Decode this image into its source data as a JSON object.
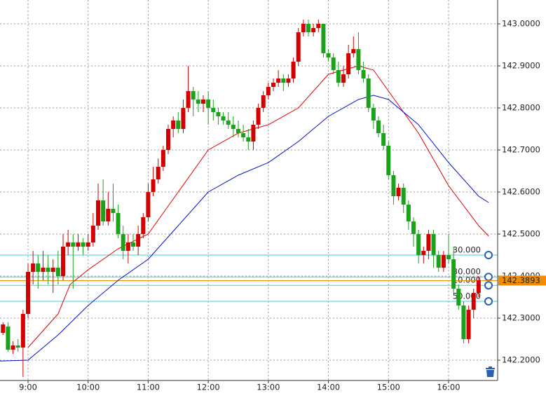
{
  "chart_data": {
    "type": "candlestick",
    "x": [
      515,
      520,
      525,
      530,
      535,
      540,
      545,
      550,
      555,
      560,
      565,
      570,
      575,
      580,
      585,
      590,
      595,
      600,
      605,
      610,
      615,
      620,
      625,
      630,
      635,
      640,
      645,
      650,
      655,
      660,
      665,
      670,
      675,
      680,
      685,
      690,
      695,
      700,
      705,
      710,
      715,
      720,
      725,
      730,
      735,
      740,
      745,
      750,
      755,
      760,
      765,
      770,
      775,
      780,
      785,
      790,
      795,
      800,
      805,
      810,
      815,
      820,
      825,
      830,
      835,
      840,
      845,
      850,
      855,
      860,
      865,
      870,
      875,
      880,
      885,
      890,
      895,
      900,
      905,
      910,
      915,
      920,
      925,
      930,
      935,
      940,
      945,
      950,
      955,
      960,
      965,
      970,
      975,
      980,
      985,
      990
    ],
    "open": [
      142.265,
      142.28,
      142.225,
      142.235,
      142.23,
      142.31,
      142.41,
      142.43,
      142.41,
      142.42,
      142.41,
      142.42,
      142.4,
      142.47,
      142.48,
      142.47,
      142.48,
      142.47,
      142.48,
      142.52,
      142.58,
      142.53,
      142.56,
      142.55,
      142.5,
      142.46,
      142.48,
      142.47,
      142.5,
      142.54,
      142.6,
      142.63,
      142.66,
      142.7,
      142.75,
      142.77,
      142.75,
      142.8,
      142.84,
      142.82,
      142.81,
      142.82,
      142.8,
      142.79,
      142.78,
      142.77,
      142.76,
      142.75,
      142.74,
      142.73,
      142.72,
      142.76,
      142.8,
      142.83,
      142.85,
      142.86,
      142.87,
      142.86,
      142.87,
      142.91,
      142.98,
      143.0,
      142.98,
      142.99,
      143.0,
      142.93,
      142.92,
      142.89,
      142.86,
      142.88,
      142.93,
      142.94,
      142.89,
      142.87,
      142.8,
      142.77,
      142.74,
      142.71,
      142.64,
      142.59,
      142.61,
      142.57,
      142.53,
      142.5,
      142.45,
      142.46,
      142.5,
      142.45,
      142.42,
      142.45,
      142.44,
      142.37,
      142.33,
      142.25,
      142.32,
      142.36
    ],
    "high": [
      142.29,
      142.29,
      142.245,
      142.25,
      142.32,
      142.43,
      142.46,
      142.45,
      142.46,
      142.45,
      142.44,
      142.46,
      142.5,
      142.51,
      142.5,
      142.5,
      142.49,
      142.5,
      142.55,
      142.62,
      142.63,
      142.6,
      142.62,
      142.57,
      142.52,
      142.5,
      142.5,
      142.52,
      142.55,
      142.62,
      142.66,
      142.68,
      142.71,
      142.76,
      142.78,
      142.79,
      142.82,
      142.9,
      142.85,
      142.84,
      142.83,
      142.84,
      142.82,
      142.8,
      142.79,
      142.79,
      142.78,
      142.77,
      142.76,
      142.75,
      142.77,
      142.81,
      142.84,
      142.86,
      142.87,
      142.89,
      142.88,
      142.88,
      142.92,
      142.99,
      143.01,
      143.01,
      143.0,
      143.01,
      143.0,
      142.94,
      142.93,
      142.91,
      142.9,
      142.95,
      142.97,
      142.98,
      142.91,
      142.88,
      142.81,
      142.78,
      142.76,
      142.72,
      142.65,
      142.62,
      142.62,
      142.58,
      142.54,
      142.51,
      142.47,
      142.51,
      142.51,
      142.46,
      142.46,
      142.5,
      142.47,
      142.38,
      142.34,
      142.33,
      142.37,
      142.4
    ],
    "low": [
      142.26,
      142.22,
      142.215,
      142.22,
      142.16,
      142.3,
      142.38,
      142.37,
      142.39,
      142.38,
      142.36,
      142.38,
      142.39,
      142.45,
      142.37,
      142.46,
      142.45,
      142.46,
      142.47,
      142.51,
      142.52,
      142.52,
      142.53,
      142.49,
      142.44,
      142.43,
      142.46,
      142.45,
      142.49,
      142.53,
      142.59,
      142.62,
      142.65,
      142.69,
      142.73,
      142.74,
      142.74,
      142.79,
      142.78,
      142.79,
      142.79,
      142.76,
      142.77,
      142.76,
      142.76,
      142.75,
      142.73,
      142.73,
      142.72,
      142.7,
      142.7,
      142.75,
      142.79,
      142.82,
      142.84,
      142.85,
      142.84,
      142.85,
      142.86,
      142.9,
      142.97,
      142.97,
      142.97,
      142.98,
      142.92,
      142.91,
      142.88,
      142.85,
      142.85,
      142.87,
      142.92,
      142.88,
      142.86,
      142.79,
      142.75,
      142.73,
      142.7,
      142.63,
      142.57,
      142.58,
      142.55,
      142.51,
      142.47,
      142.43,
      142.43,
      142.44,
      142.42,
      142.41,
      142.41,
      142.43,
      142.36,
      142.32,
      142.24,
      142.24,
      142.3,
      142.35
    ],
    "close": [
      142.285,
      142.225,
      142.235,
      142.23,
      142.31,
      142.41,
      142.43,
      142.41,
      142.42,
      142.41,
      142.42,
      142.4,
      142.47,
      142.48,
      142.47,
      142.48,
      142.47,
      142.48,
      142.52,
      142.58,
      142.53,
      142.56,
      142.55,
      142.5,
      142.46,
      142.48,
      142.47,
      142.5,
      142.54,
      142.6,
      142.63,
      142.66,
      142.7,
      142.75,
      142.77,
      142.75,
      142.8,
      142.84,
      142.82,
      142.81,
      142.82,
      142.8,
      142.79,
      142.78,
      142.77,
      142.76,
      142.75,
      142.74,
      142.73,
      142.72,
      142.76,
      142.8,
      142.83,
      142.85,
      142.86,
      142.87,
      142.86,
      142.87,
      142.91,
      142.98,
      143.0,
      142.98,
      142.99,
      143.0,
      142.93,
      142.92,
      142.89,
      142.86,
      142.88,
      142.93,
      142.94,
      142.89,
      142.87,
      142.8,
      142.77,
      142.74,
      142.71,
      142.64,
      142.59,
      142.61,
      142.57,
      142.53,
      142.5,
      142.45,
      142.46,
      142.5,
      142.45,
      142.42,
      142.45,
      142.44,
      142.37,
      142.33,
      142.25,
      142.32,
      142.36,
      142.39
    ],
    "up_color": "#d40000",
    "down_color": "#1aa31a",
    "averages": [
      {
        "color": "#e00000",
        "x": [
          540,
          555,
          570,
          582,
          600,
          630,
          660,
          690,
          720,
          750,
          780,
          810,
          840,
          870,
          885,
          900,
          930,
          960,
          990,
          1000
        ],
        "values": [
          142.23,
          142.27,
          142.31,
          142.38,
          142.415,
          142.465,
          142.5,
          142.6,
          142.7,
          142.74,
          142.76,
          142.8,
          142.88,
          142.9,
          142.89,
          142.84,
          142.74,
          142.615,
          142.52,
          142.495
        ]
      },
      {
        "color": "#0010c8",
        "x": [
          512,
          540,
          570,
          600,
          630,
          660,
          690,
          720,
          750,
          780,
          810,
          840,
          870,
          885,
          900,
          930,
          960,
          990,
          1000
        ],
        "values": [
          142.198,
          142.2,
          142.26,
          142.33,
          142.39,
          142.44,
          142.52,
          142.6,
          142.64,
          142.67,
          142.72,
          142.78,
          142.82,
          142.83,
          142.82,
          142.76,
          142.67,
          142.59,
          142.575
        ]
      }
    ],
    "levels": [
      {
        "value": 142.45,
        "label": "30.000"
      },
      {
        "value": 142.398,
        "label": "30.000"
      },
      {
        "value": 142.378,
        "label": "10.000"
      },
      {
        "value": 142.34,
        "label": "50.000"
      }
    ],
    "level_color": "#40d0e0",
    "current_price": {
      "value": 142.3893,
      "label": "142.3893"
    },
    "current_color": "#f08c00",
    "xlim": [
      512,
      1009
    ],
    "ylim": [
      142.1517,
      143.0567
    ],
    "xticks": [
      {
        "value": 540,
        "label": "9:00"
      },
      {
        "value": 600,
        "label": "10:00"
      },
      {
        "value": 660,
        "label": "11:00"
      },
      {
        "value": 720,
        "label": "12:00"
      },
      {
        "value": 780,
        "label": "13:00"
      },
      {
        "value": 840,
        "label": "14:00"
      },
      {
        "value": 900,
        "label": "15:00"
      },
      {
        "value": 960,
        "label": "16:00"
      }
    ],
    "yticks": [
      {
        "value": 142.2,
        "label": "142.2000"
      },
      {
        "value": 142.3,
        "label": "142.3000"
      },
      {
        "value": 142.4,
        "label": "142.4000"
      },
      {
        "value": 142.5,
        "label": "142.5000"
      },
      {
        "value": 142.6,
        "label": "142.6000"
      },
      {
        "value": 142.7,
        "label": "142.7000"
      },
      {
        "value": 142.8,
        "label": "142.8000"
      },
      {
        "value": 142.9,
        "label": "142.9000"
      },
      {
        "value": 143.0,
        "label": "143.0000"
      }
    ],
    "grid": true
  }
}
